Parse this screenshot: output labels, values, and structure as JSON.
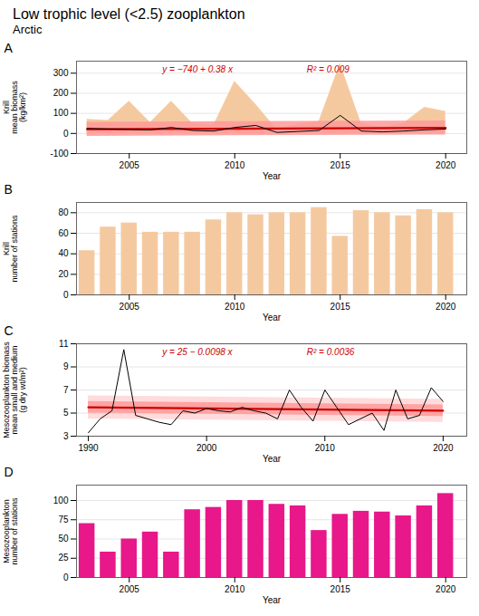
{
  "title": "Low trophic level (<2.5) zooplankton",
  "subtitle": "Arctic",
  "chart_data": [
    {
      "type": "line",
      "title": "A",
      "xlabel": "Year",
      "ylabel": "Krill\nmean biomass\n(kg/km²)",
      "xlim": [
        2002.5,
        2021
      ],
      "xticks": [
        2005,
        2010,
        2015,
        2020
      ],
      "ylim": [
        -100,
        360
      ],
      "yticks": [
        -100,
        0,
        100,
        200,
        300
      ],
      "grid": true,
      "series": [
        {
          "type": "area",
          "color": "#f5c9a0",
          "x": [
            2003,
            2004,
            2005,
            2006,
            2007,
            2008,
            2009,
            2010,
            2011,
            2012,
            2013,
            2014,
            2015,
            2016,
            2017,
            2018,
            2019,
            2020
          ],
          "lower": [
            0,
            0,
            0,
            0,
            0,
            0,
            0,
            0,
            0,
            0,
            0,
            0,
            0,
            0,
            0,
            0,
            0,
            0
          ],
          "upper": [
            70,
            65,
            160,
            55,
            160,
            50,
            40,
            260,
            145,
            20,
            45,
            60,
            350,
            50,
            30,
            50,
            130,
            110
          ]
        },
        {
          "type": "area",
          "color": "#ff9999",
          "x": [
            2003,
            2020
          ],
          "lower": [
            -13.86,
            -7.4
          ],
          "upper": [
            56.14,
            62.6
          ]
        },
        {
          "type": "line",
          "color": "#cc0000",
          "x": [
            2003,
            2020
          ],
          "values": [
            21.14,
            27.6
          ]
        },
        {
          "type": "line",
          "color": "black",
          "x": [
            2003,
            2004,
            2005,
            2006,
            2007,
            2008,
            2009,
            2010,
            2011,
            2012,
            2013,
            2014,
            2015,
            2016,
            2017,
            2018,
            2019,
            2020
          ],
          "values": [
            25,
            22,
            20,
            18,
            30,
            15,
            12,
            30,
            40,
            5,
            10,
            15,
            90,
            12,
            8,
            12,
            18,
            22
          ]
        }
      ],
      "annotations": [
        {
          "text": "y = −740 + 0.38 x",
          "color": "#cc0000"
        },
        {
          "text": "R² = 0.009",
          "color": "#cc0000"
        }
      ]
    },
    {
      "type": "bar",
      "title": "B",
      "xlabel": "Year",
      "ylabel": "Krill\nnumber of stations",
      "xlim": [
        2002.5,
        2021
      ],
      "xticks": [
        2005,
        2010,
        2015,
        2020
      ],
      "ylim": [
        0,
        90
      ],
      "yticks": [
        0,
        20,
        40,
        60,
        80
      ],
      "grid": true,
      "color": "#f5c9a0",
      "x": [
        2003,
        2004,
        2005,
        2006,
        2007,
        2008,
        2009,
        2010,
        2011,
        2012,
        2013,
        2014,
        2015,
        2016,
        2017,
        2018,
        2019,
        2020
      ],
      "values": [
        43,
        66,
        70,
        61,
        61,
        61,
        73,
        80,
        78,
        80,
        80,
        85,
        57,
        82,
        80,
        77,
        83,
        80
      ]
    },
    {
      "type": "line",
      "title": "C",
      "xlabel": "Year",
      "ylabel": "Mesozooplankton biomass\nmean small and medium\n(g dry wt/m²)",
      "xlim": [
        1989,
        2022
      ],
      "xticks": [
        1990,
        2000,
        2010,
        2020
      ],
      "ylim": [
        3,
        11
      ],
      "yticks": [
        3,
        5,
        7,
        9,
        11
      ],
      "grid": true,
      "series": [
        {
          "type": "area",
          "color": "#ff9999",
          "x": [
            1990,
            2020
          ],
          "lower": [
            4.498,
            4.204
          ],
          "upper": [
            6.498,
            6.204
          ]
        },
        {
          "type": "area",
          "color": "#ff9999",
          "x": [
            1990,
            2020
          ],
          "lower": [
            4.998,
            4.704
          ],
          "upper": [
            5.998,
            5.704
          ]
        },
        {
          "type": "line",
          "color": "#cc0000",
          "x": [
            1990,
            2020
          ],
          "values": [
            5.498,
            5.204
          ]
        },
        {
          "type": "line",
          "color": "black",
          "x": [
            1990,
            1991,
            1992,
            1993,
            1994,
            1995,
            1996,
            1997,
            1998,
            1999,
            2000,
            2001,
            2002,
            2003,
            2004,
            2005,
            2006,
            2007,
            2008,
            2009,
            2010,
            2011,
            2012,
            2013,
            2014,
            2015,
            2016,
            2017,
            2018,
            2019,
            2020
          ],
          "values": [
            3.3,
            4.5,
            5.2,
            10.5,
            4.8,
            4.5,
            4.2,
            4.0,
            5.2,
            5.0,
            5.4,
            5.2,
            5.1,
            5.5,
            5.2,
            5.0,
            4.5,
            7.0,
            5.5,
            4.3,
            7.0,
            5.5,
            4.0,
            4.5,
            5.0,
            3.5,
            7.0,
            4.5,
            4.8,
            7.2,
            6.0
          ]
        }
      ],
      "annotations": [
        {
          "text": "y = 25 − 0.0098 x",
          "color": "#cc0000"
        },
        {
          "text": "R² = 0.0036",
          "color": "#cc0000"
        }
      ]
    },
    {
      "type": "bar",
      "title": "D",
      "xlabel": "Year",
      "ylabel": "Mesozooplankton\nnumber of stations",
      "xlim": [
        2002.5,
        2021
      ],
      "xticks": [
        2005,
        2010,
        2015,
        2020
      ],
      "ylim": [
        0,
        120
      ],
      "yticks": [
        0,
        25,
        50,
        75,
        100
      ],
      "grid": true,
      "color": "#e8178a",
      "x": [
        2003,
        2004,
        2005,
        2006,
        2007,
        2008,
        2009,
        2010,
        2011,
        2012,
        2013,
        2014,
        2015,
        2016,
        2017,
        2018,
        2019,
        2020
      ],
      "values": [
        70,
        33,
        50,
        59,
        33,
        88,
        91,
        100,
        100,
        95,
        93,
        61,
        82,
        86,
        85,
        80,
        93,
        109
      ]
    }
  ]
}
